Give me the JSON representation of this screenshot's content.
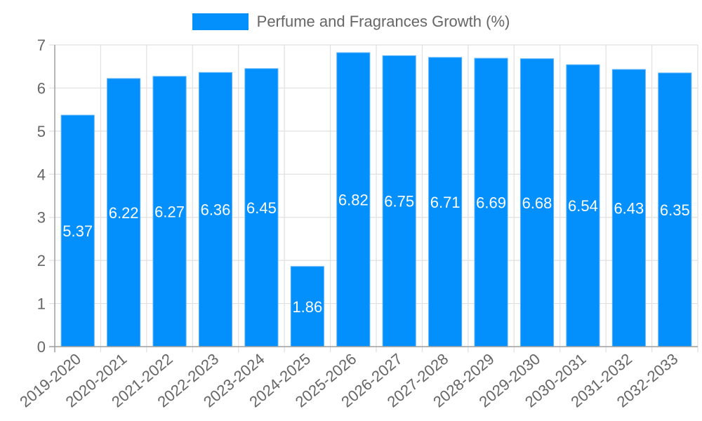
{
  "chart_data": {
    "type": "bar",
    "title": "",
    "legend": [
      "Perfume and Fragrances Growth (%)"
    ],
    "legend_position": "top",
    "categories": [
      "2019-2020",
      "2020-2021",
      "2021-2022",
      "2022-2023",
      "2023-2024",
      "2024-2025",
      "2025-2026",
      "2026-2027",
      "2027-2028",
      "2028-2029",
      "2029-2030",
      "2030-2031",
      "2031-2032",
      "2032-2033"
    ],
    "series": [
      {
        "name": "Perfume and Fragrances Growth (%)",
        "values": [
          5.37,
          6.22,
          6.27,
          6.36,
          6.45,
          1.86,
          6.82,
          6.75,
          6.71,
          6.69,
          6.68,
          6.54,
          6.43,
          6.35
        ],
        "color": "#0390fc"
      }
    ],
    "xlabel": "",
    "ylabel": "",
    "ylim": [
      0,
      7
    ],
    "yticks": [
      0,
      1,
      2,
      3,
      4,
      5,
      6,
      7
    ],
    "grid": true,
    "data_labels": true
  },
  "colors": {
    "bar": "#0390fc",
    "bar_border": "#5eb4fb",
    "grid": "#e0e0e0",
    "axis": "#a0a0a0",
    "tick_text": "#666666",
    "data_label": "#ffffff"
  }
}
